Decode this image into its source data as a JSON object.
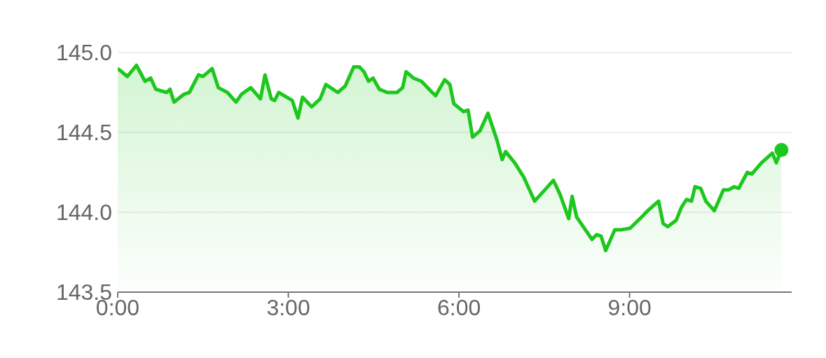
{
  "chart_data": {
    "type": "area",
    "x": [
      0.0,
      0.17,
      0.33,
      0.48,
      0.58,
      0.67,
      0.86,
      0.92,
      0.99,
      1.17,
      1.26,
      1.42,
      1.5,
      1.66,
      1.77,
      1.93,
      2.08,
      2.18,
      2.34,
      2.51,
      2.59,
      2.7,
      2.76,
      2.83,
      3.07,
      3.17,
      3.25,
      3.41,
      3.56,
      3.66,
      3.87,
      4.0,
      4.15,
      4.25,
      4.33,
      4.41,
      4.49,
      4.6,
      4.74,
      4.91,
      5.01,
      5.07,
      5.2,
      5.34,
      5.53,
      5.59,
      5.75,
      5.84,
      5.91,
      6.08,
      6.16,
      6.24,
      6.37,
      6.51,
      6.67,
      6.76,
      6.82,
      6.98,
      7.14,
      7.33,
      7.51,
      7.66,
      7.78,
      7.93,
      7.99,
      8.07,
      8.34,
      8.42,
      8.5,
      8.58,
      8.74,
      8.85,
      9.01,
      9.24,
      9.32,
      9.51,
      9.59,
      9.67,
      9.82,
      9.91,
      10.0,
      10.09,
      10.15,
      10.25,
      10.34,
      10.49,
      10.65,
      10.74,
      10.84,
      10.92,
      11.07,
      11.15,
      11.32,
      11.51,
      11.58,
      11.67
    ],
    "series": [
      {
        "color": "#1dc71d",
        "values": [
          144.9,
          144.85,
          144.92,
          144.82,
          144.84,
          144.77,
          144.75,
          144.77,
          144.69,
          144.74,
          144.75,
          144.86,
          144.85,
          144.9,
          144.78,
          144.75,
          144.69,
          144.74,
          144.78,
          144.71,
          144.86,
          144.71,
          144.7,
          144.75,
          144.7,
          144.59,
          144.72,
          144.66,
          144.71,
          144.8,
          144.75,
          144.79,
          144.91,
          144.91,
          144.88,
          144.82,
          144.84,
          144.77,
          144.75,
          144.75,
          144.78,
          144.88,
          144.84,
          144.82,
          144.75,
          144.73,
          144.83,
          144.8,
          144.68,
          144.63,
          144.64,
          144.47,
          144.51,
          144.62,
          144.45,
          144.33,
          144.38,
          144.31,
          144.22,
          144.07,
          144.14,
          144.2,
          144.11,
          143.96,
          144.1,
          143.97,
          143.83,
          143.86,
          143.85,
          143.76,
          143.89,
          143.89,
          143.9,
          143.98,
          144.01,
          144.07,
          143.93,
          143.91,
          143.95,
          144.03,
          144.08,
          144.07,
          144.16,
          144.15,
          144.07,
          144.01,
          144.14,
          144.14,
          144.16,
          144.15,
          144.25,
          144.24,
          144.31,
          144.37,
          144.31,
          144.39
        ]
      },
      {
        "type": "scatter",
        "color": "#1dc71d",
        "x": [
          11.67
        ],
        "values": [
          144.39
        ],
        "marker": "circle"
      }
    ],
    "xlim": [
      0,
      11.85
    ],
    "xticks": [
      {
        "value": 0,
        "label": "0:00"
      },
      {
        "value": 3,
        "label": "3:00"
      },
      {
        "value": 6,
        "label": "6:00"
      },
      {
        "value": 9,
        "label": "9:00"
      }
    ],
    "ylim": [
      143.5,
      145.0
    ],
    "yticks": [
      {
        "value": 143.5,
        "label": "143.5"
      },
      {
        "value": 144.0,
        "label": "144.0"
      },
      {
        "value": 144.5,
        "label": "144.5"
      },
      {
        "value": 145.0,
        "label": "145.0"
      }
    ],
    "grid": "y",
    "marker": "none",
    "line_style": "solid"
  }
}
